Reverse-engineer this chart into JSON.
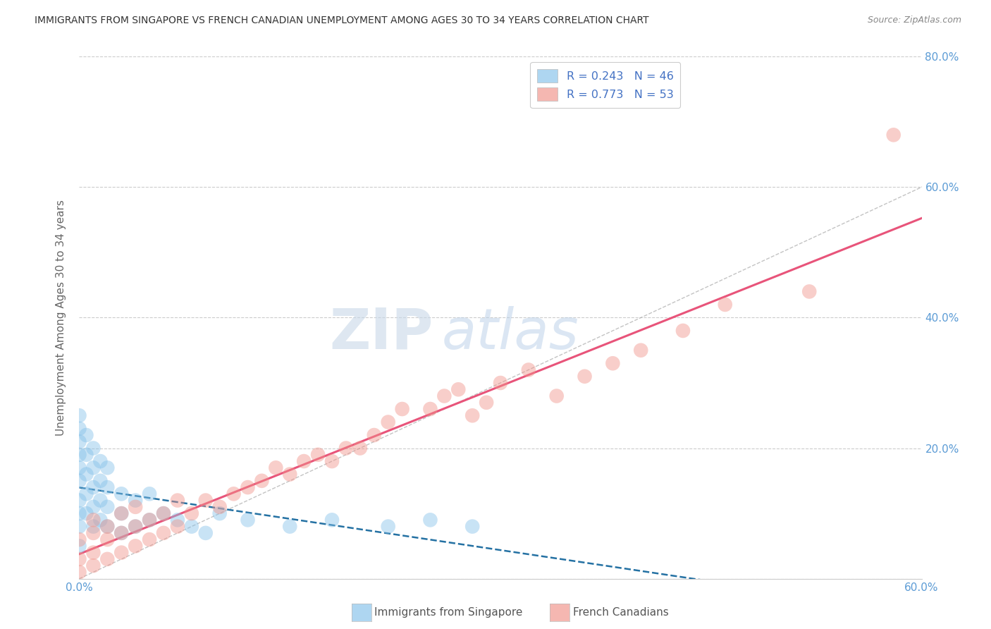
{
  "title": "IMMIGRANTS FROM SINGAPORE VS FRENCH CANADIAN UNEMPLOYMENT AMONG AGES 30 TO 34 YEARS CORRELATION CHART",
  "source": "Source: ZipAtlas.com",
  "ylabel": "Unemployment Among Ages 30 to 34 years",
  "xlim": [
    0.0,
    0.6
  ],
  "ylim": [
    0.0,
    0.8
  ],
  "background_color": "#ffffff",
  "watermark_zip": "ZIP",
  "watermark_atlas": "atlas",
  "singapore_color": "#85c1e9",
  "singapore_line_color": "#2471a3",
  "fc_color": "#f1948a",
  "fc_line_color": "#e8547a",
  "ref_line_color": "#aaaaaa",
  "grid_color": "#cccccc",
  "tick_color": "#5b9bd5",
  "title_color": "#333333",
  "ylabel_color": "#666666",
  "singapore_N": 46,
  "fc_N": 53,
  "singapore_R": 0.243,
  "fc_R": 0.773,
  "sg_x": [
    0.0,
    0.0,
    0.0,
    0.0,
    0.0,
    0.0,
    0.0,
    0.0,
    0.0,
    0.0,
    0.005,
    0.005,
    0.005,
    0.005,
    0.005,
    0.01,
    0.01,
    0.01,
    0.01,
    0.01,
    0.015,
    0.015,
    0.015,
    0.015,
    0.02,
    0.02,
    0.02,
    0.02,
    0.03,
    0.03,
    0.03,
    0.04,
    0.04,
    0.05,
    0.05,
    0.06,
    0.07,
    0.08,
    0.09,
    0.1,
    0.12,
    0.15,
    0.18,
    0.22,
    0.25,
    0.28
  ],
  "sg_y": [
    0.05,
    0.08,
    0.1,
    0.12,
    0.15,
    0.17,
    0.19,
    0.21,
    0.23,
    0.25,
    0.1,
    0.13,
    0.16,
    0.19,
    0.22,
    0.08,
    0.11,
    0.14,
    0.17,
    0.2,
    0.09,
    0.12,
    0.15,
    0.18,
    0.08,
    0.11,
    0.14,
    0.17,
    0.07,
    0.1,
    0.13,
    0.08,
    0.12,
    0.09,
    0.13,
    0.1,
    0.09,
    0.08,
    0.07,
    0.1,
    0.09,
    0.08,
    0.09,
    0.08,
    0.09,
    0.08
  ],
  "fc_x": [
    0.0,
    0.0,
    0.0,
    0.01,
    0.01,
    0.01,
    0.01,
    0.02,
    0.02,
    0.02,
    0.03,
    0.03,
    0.03,
    0.04,
    0.04,
    0.04,
    0.05,
    0.05,
    0.06,
    0.06,
    0.07,
    0.07,
    0.08,
    0.09,
    0.1,
    0.11,
    0.12,
    0.13,
    0.14,
    0.15,
    0.16,
    0.17,
    0.18,
    0.19,
    0.2,
    0.21,
    0.22,
    0.23,
    0.25,
    0.26,
    0.27,
    0.28,
    0.29,
    0.3,
    0.32,
    0.34,
    0.36,
    0.38,
    0.4,
    0.43,
    0.46,
    0.52,
    0.58
  ],
  "fc_y": [
    0.01,
    0.03,
    0.06,
    0.02,
    0.04,
    0.07,
    0.09,
    0.03,
    0.06,
    0.08,
    0.04,
    0.07,
    0.1,
    0.05,
    0.08,
    0.11,
    0.06,
    0.09,
    0.07,
    0.1,
    0.08,
    0.12,
    0.1,
    0.12,
    0.11,
    0.13,
    0.14,
    0.15,
    0.17,
    0.16,
    0.18,
    0.19,
    0.18,
    0.2,
    0.2,
    0.22,
    0.24,
    0.26,
    0.26,
    0.28,
    0.29,
    0.25,
    0.27,
    0.3,
    0.32,
    0.28,
    0.31,
    0.33,
    0.35,
    0.38,
    0.42,
    0.44,
    0.68
  ]
}
